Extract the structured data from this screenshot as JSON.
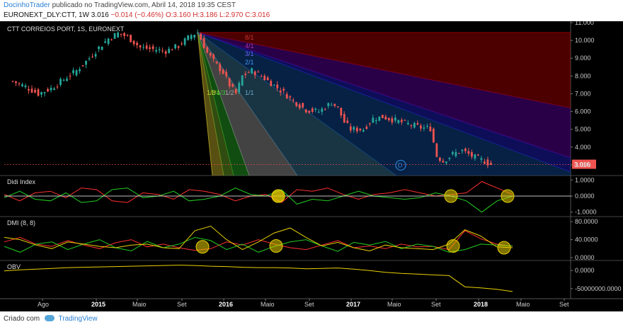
{
  "header": {
    "author": "DocinhoTrader",
    "published_text": "publicado no TradingView.com, Abril 14, 2018 19:35 CEST",
    "symbol_line": "EURONEXT_DLY:CTT, 1W",
    "last": "3.016",
    "change": "−0.014 (−0.46%)",
    "ohlc": "O:3.160 H:3.186 L:2.970 C:3.016"
  },
  "footer": {
    "created_with": "Criado com",
    "brand": "TradingView"
  },
  "chart_data": [
    {
      "type": "candlestick",
      "title": "CTT CORREIOS PORT, 1S, EURONEXT",
      "ylim": [
        2.4,
        11.0
      ],
      "y_ticks": [
        "11.000",
        "10.000",
        "9.000",
        "8.000",
        "7.000",
        "6.000",
        "5.000",
        "4.000",
        "3.000"
      ],
      "last_price_label": "3.016",
      "x_ticks": [
        "Ago",
        "2015",
        "Maio",
        "Set",
        "2016",
        "Maio",
        "Set",
        "2017",
        "Maio",
        "Set",
        "2018",
        "Maio",
        "Set"
      ],
      "bold_x_ticks": [
        "2015",
        "2016",
        "2017",
        "2018"
      ],
      "close_path": [
        {
          "x": 0,
          "close": 7.7
        },
        {
          "x": 4,
          "close": 7.4
        },
        {
          "x": 8,
          "close": 7.0
        },
        {
          "x": 12,
          "close": 7.3
        },
        {
          "x": 16,
          "close": 7.8
        },
        {
          "x": 20,
          "close": 8.3
        },
        {
          "x": 24,
          "close": 9.0
        },
        {
          "x": 27,
          "close": 9.6
        },
        {
          "x": 30,
          "close": 10.1
        },
        {
          "x": 33,
          "close": 10.4
        },
        {
          "x": 36,
          "close": 10.2
        },
        {
          "x": 40,
          "close": 9.6
        },
        {
          "x": 44,
          "close": 9.5
        },
        {
          "x": 48,
          "close": 9.4
        },
        {
          "x": 52,
          "close": 9.7
        },
        {
          "x": 56,
          "close": 10.3
        },
        {
          "x": 58,
          "close": 10.45
        },
        {
          "x": 61,
          "close": 9.3
        },
        {
          "x": 64,
          "close": 8.6
        },
        {
          "x": 66,
          "close": 8.2
        },
        {
          "x": 68,
          "close": 7.5
        },
        {
          "x": 70,
          "close": 7.0
        },
        {
          "x": 72,
          "close": 8.0
        },
        {
          "x": 75,
          "close": 8.3
        },
        {
          "x": 78,
          "close": 8.0
        },
        {
          "x": 81,
          "close": 7.6
        },
        {
          "x": 84,
          "close": 7.2
        },
        {
          "x": 88,
          "close": 6.6
        },
        {
          "x": 92,
          "close": 6.1
        },
        {
          "x": 96,
          "close": 6.0
        },
        {
          "x": 100,
          "close": 6.5
        },
        {
          "x": 102,
          "close": 6.2
        },
        {
          "x": 104,
          "close": 5.4
        },
        {
          "x": 106,
          "close": 5.0
        },
        {
          "x": 110,
          "close": 5.0
        },
        {
          "x": 113,
          "close": 5.6
        },
        {
          "x": 116,
          "close": 5.7
        },
        {
          "x": 120,
          "close": 5.5
        },
        {
          "x": 124,
          "close": 5.3
        },
        {
          "x": 128,
          "close": 5.1
        },
        {
          "x": 131,
          "close": 5.05
        },
        {
          "x": 133,
          "close": 3.5
        },
        {
          "x": 135,
          "close": 3.2
        },
        {
          "x": 138,
          "close": 3.6
        },
        {
          "x": 141,
          "close": 3.8
        },
        {
          "x": 144,
          "close": 3.5
        },
        {
          "x": 148,
          "close": 3.2
        },
        {
          "x": 150,
          "close": 3.016
        }
      ],
      "gann_fan_labels": [
        "8/1",
        "4/1",
        "3/1",
        "2/1",
        "1/1",
        "1/2",
        "1/3",
        "1/4",
        "1/8"
      ],
      "event_marker": "D"
    },
    {
      "type": "line",
      "title": "Didi Index",
      "y_ticks": [
        "1.0000",
        "0.0000",
        "-1.0000"
      ],
      "ylim": [
        -1.1,
        1.1
      ],
      "series": [
        {
          "color": "#ff3030",
          "values": [
            0.1,
            -0.3,
            0.2,
            0.3,
            -0.1,
            0.5,
            0.4,
            -0.3,
            -0.4,
            0.2,
            0.1,
            -0.2,
            0.4,
            0.3,
            0.1,
            -0.3,
            0.0,
            0.1,
            -0.4,
            0.4,
            0.3,
            0.5,
            0.1,
            -0.2,
            0.1,
            0.2,
            0.4,
            0.2,
            0.0,
            0.1,
            0.2,
            0.9,
            0.5,
            0.1
          ]
        },
        {
          "color": "#22cc22",
          "values": [
            -0.1,
            0.3,
            -0.2,
            -0.3,
            0.2,
            -0.4,
            -0.3,
            0.4,
            0.5,
            -0.1,
            0.0,
            0.3,
            -0.3,
            -0.2,
            0.0,
            0.5,
            0.1,
            0.0,
            0.4,
            -0.5,
            -0.2,
            -0.3,
            0.0,
            0.3,
            0.0,
            -0.1,
            -0.2,
            -0.1,
            0.2,
            0.0,
            -0.3,
            -1.0,
            -0.3,
            0.0
          ]
        }
      ],
      "highlight_circles": 4
    },
    {
      "type": "line",
      "title": "DMI (8, 8)",
      "y_ticks": [
        "80.0000",
        "40.0000",
        "0.0000"
      ],
      "ylim": [
        0,
        85
      ],
      "series": [
        {
          "color": "#ff3030",
          "values": [
            35,
            45,
            30,
            25,
            38,
            28,
            20,
            33,
            40,
            24,
            30,
            22,
            16,
            20,
            35,
            28,
            40,
            30,
            22,
            18,
            28,
            38,
            22,
            26,
            20,
            30,
            24,
            25,
            18,
            60,
            42,
            30,
            25
          ]
        },
        {
          "color": "#22cc22",
          "values": [
            25,
            12,
            30,
            35,
            18,
            30,
            40,
            22,
            15,
            36,
            22,
            30,
            45,
            38,
            18,
            30,
            12,
            25,
            35,
            40,
            26,
            14,
            34,
            28,
            36,
            20,
            30,
            25,
            12,
            18,
            30,
            28,
            26
          ]
        },
        {
          "color": "#e8d000",
          "values": [
            45,
            40,
            28,
            20,
            35,
            30,
            25,
            22,
            28,
            30,
            22,
            20,
            60,
            70,
            40,
            18,
            35,
            55,
            66,
            45,
            26,
            34,
            22,
            15,
            28,
            22,
            20,
            18,
            30,
            62,
            48,
            24,
            22
          ]
        }
      ],
      "highlight_circles": 4
    },
    {
      "type": "line",
      "title": "OBV",
      "y_ticks": [
        "0.0000",
        "-50000000.0000"
      ],
      "ylim": [
        -70000000,
        20000000
      ],
      "series": [
        {
          "color": "#e8d000",
          "values": [
            -1,
            2,
            4,
            6,
            8,
            9,
            10,
            11,
            12,
            13,
            14,
            15,
            14,
            12,
            11,
            9,
            8,
            8,
            7,
            5,
            6,
            7,
            4,
            0,
            -5,
            -8,
            -10,
            -12,
            -14,
            -45,
            -48,
            -52,
            -58
          ]
        }
      ]
    }
  ]
}
